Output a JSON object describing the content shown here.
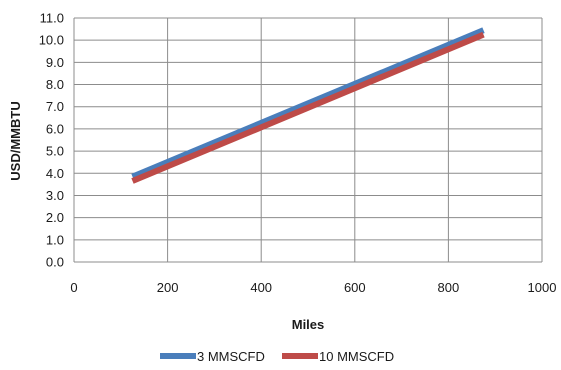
{
  "chart_data": {
    "type": "line",
    "title": "",
    "xlabel": "Miles",
    "ylabel": "USD/MMBTU",
    "xlim": [
      0,
      1000
    ],
    "ylim": [
      0,
      11
    ],
    "x_ticks": [
      "0",
      "200",
      "400",
      "600",
      "800",
      "1000"
    ],
    "y_ticks": [
      "0.0",
      "1.0",
      "2.0",
      "3.0",
      "4.0",
      "5.0",
      "6.0",
      "7.0",
      "8.0",
      "9.0",
      "10.0",
      "11.0"
    ],
    "grid": true,
    "legend_position": "bottom",
    "series": [
      {
        "name": "3 MMSCFD",
        "color": "#4a7ebb",
        "x": [
          125,
          875
        ],
        "y": [
          3.85,
          10.45
        ]
      },
      {
        "name": "10 MMSCFD",
        "color": "#be4b48",
        "x": [
          125,
          875
        ],
        "y": [
          3.65,
          10.25
        ]
      }
    ]
  }
}
